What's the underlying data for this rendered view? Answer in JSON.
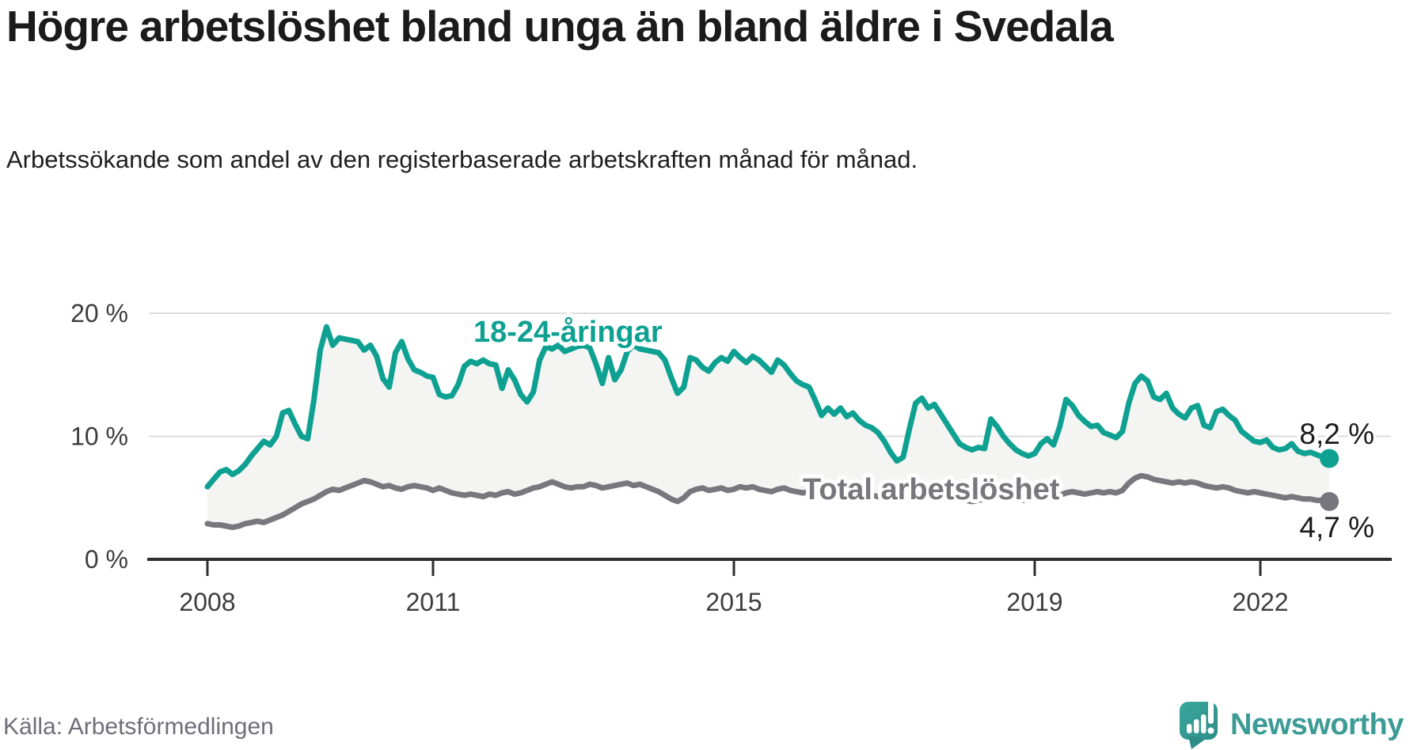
{
  "header": {
    "title": "Högre arbetslöshet bland unga än bland äldre i Svedala",
    "subtitle": "Arbetssökande som andel av den registerbaserade arbetskraften månad för månad."
  },
  "footer": {
    "source": "Källa: Arbetsförmedlingen",
    "brand": "Newsworthy"
  },
  "colors": {
    "youth_line": "#0EA192",
    "total_line": "#77777D",
    "area_fill": "#F4F4F3",
    "grid": "#DCDCDC",
    "axis": "#2E2E2E",
    "tick_label": "#3D3D3D",
    "title_text": "#1B1B1B",
    "source_text": "#6E6E78",
    "brand_teal": "#3C9C95",
    "end_label_text": "#1A1A1A"
  },
  "chart_data": {
    "type": "line",
    "x_unit": "month",
    "x_start": "2008-01",
    "x_end": "2022-12",
    "x_ticks": [
      2008,
      2011,
      2015,
      2019,
      2022
    ],
    "ylim": [
      0,
      21
    ],
    "y_ticks": [
      {
        "value": 20,
        "label": "20 %"
      },
      {
        "value": 10,
        "label": "10 %"
      },
      {
        "value": 0,
        "label": "0 %"
      }
    ],
    "grid": "horizontal",
    "legend": "inline-labels",
    "series": [
      {
        "name": "18-24-åringar",
        "end_label": "8,2 %",
        "end_value": 8.2,
        "values": [
          5.9,
          6.5,
          7.1,
          7.3,
          6.9,
          7.2,
          7.7,
          8.4,
          9.0,
          9.6,
          9.3,
          10.0,
          11.9,
          12.1,
          11.0,
          10.0,
          9.8,
          13.0,
          17.0,
          18.9,
          17.4,
          18.0,
          17.9,
          17.8,
          17.7,
          17.0,
          17.4,
          16.5,
          14.7,
          14.0,
          16.8,
          17.7,
          16.3,
          15.4,
          15.2,
          14.9,
          14.8,
          13.4,
          13.2,
          13.3,
          14.2,
          15.7,
          16.1,
          15.9,
          16.2,
          15.9,
          15.8,
          13.9,
          15.4,
          14.6,
          13.4,
          12.8,
          13.6,
          16.2,
          17.3,
          17.1,
          17.4,
          16.9,
          17.1,
          17.3,
          17.4,
          17.2,
          15.9,
          14.3,
          16.4,
          14.6,
          15.4,
          16.9,
          17.4,
          17.1,
          17.0,
          16.9,
          16.8,
          16.2,
          14.8,
          13.5,
          14.0,
          16.4,
          16.2,
          15.6,
          15.3,
          16.0,
          16.4,
          16.1,
          16.9,
          16.4,
          16.0,
          16.5,
          16.2,
          15.7,
          15.2,
          16.2,
          15.8,
          15.1,
          14.5,
          14.2,
          14.0,
          12.9,
          11.7,
          12.3,
          11.8,
          12.3,
          11.6,
          11.9,
          11.3,
          10.9,
          10.7,
          10.3,
          9.6,
          8.7,
          8.0,
          8.3,
          10.6,
          12.7,
          13.1,
          12.3,
          12.6,
          11.8,
          11.0,
          10.2,
          9.4,
          9.1,
          8.9,
          9.1,
          9.0,
          11.4,
          10.8,
          10.0,
          9.4,
          8.9,
          8.6,
          8.4,
          8.6,
          9.4,
          9.8,
          9.3,
          10.8,
          13.0,
          12.5,
          11.7,
          11.2,
          10.8,
          10.9,
          10.3,
          10.1,
          9.9,
          10.4,
          12.7,
          14.3,
          14.9,
          14.5,
          13.2,
          13.0,
          13.5,
          12.3,
          11.8,
          11.5,
          12.3,
          12.5,
          10.9,
          10.7,
          12.0,
          12.2,
          11.7,
          11.3,
          10.4,
          10.0,
          9.6,
          9.5,
          9.7,
          9.1,
          8.9,
          9.0,
          9.4,
          8.8,
          8.6,
          8.7,
          8.5,
          8.3,
          8.2
        ]
      },
      {
        "name": "Total arbetslöshet",
        "end_label": "4,7 %",
        "end_value": 4.7,
        "values": [
          2.9,
          2.8,
          2.8,
          2.7,
          2.6,
          2.7,
          2.9,
          3.0,
          3.1,
          3.0,
          3.2,
          3.4,
          3.6,
          3.9,
          4.2,
          4.5,
          4.7,
          4.9,
          5.2,
          5.5,
          5.7,
          5.6,
          5.8,
          6.0,
          6.2,
          6.4,
          6.3,
          6.1,
          5.9,
          6.0,
          5.8,
          5.7,
          5.9,
          6.0,
          5.9,
          5.8,
          5.6,
          5.8,
          5.6,
          5.4,
          5.3,
          5.2,
          5.3,
          5.2,
          5.1,
          5.3,
          5.2,
          5.4,
          5.5,
          5.3,
          5.4,
          5.6,
          5.8,
          5.9,
          6.1,
          6.3,
          6.1,
          5.9,
          5.8,
          5.9,
          5.9,
          6.1,
          6.0,
          5.8,
          5.9,
          6.0,
          6.1,
          6.2,
          6.0,
          6.1,
          5.9,
          5.7,
          5.5,
          5.2,
          4.9,
          4.7,
          5.0,
          5.5,
          5.7,
          5.8,
          5.6,
          5.7,
          5.8,
          5.6,
          5.7,
          5.9,
          5.8,
          5.9,
          5.7,
          5.6,
          5.5,
          5.7,
          5.8,
          5.6,
          5.5,
          5.4,
          5.5,
          5.4,
          5.2,
          5.3,
          5.2,
          5.3,
          5.4,
          5.3,
          5.2,
          5.1,
          5.2,
          5.1,
          5.0,
          4.9,
          4.8,
          4.9,
          5.0,
          5.2,
          5.3,
          5.2,
          5.3,
          5.2,
          5.1,
          5.0,
          4.9,
          4.8,
          4.7,
          4.8,
          4.9,
          5.1,
          5.2,
          5.1,
          5.0,
          4.9,
          4.8,
          4.9,
          5.0,
          5.1,
          5.0,
          5.1,
          5.2,
          5.4,
          5.5,
          5.4,
          5.3,
          5.4,
          5.5,
          5.4,
          5.5,
          5.4,
          5.6,
          6.2,
          6.6,
          6.8,
          6.7,
          6.5,
          6.4,
          6.3,
          6.2,
          6.3,
          6.2,
          6.3,
          6.2,
          6.0,
          5.9,
          5.8,
          5.9,
          5.8,
          5.6,
          5.5,
          5.4,
          5.5,
          5.4,
          5.3,
          5.2,
          5.1,
          5.0,
          5.1,
          5.0,
          4.9,
          4.9,
          4.8,
          4.8,
          4.7
        ]
      }
    ]
  }
}
